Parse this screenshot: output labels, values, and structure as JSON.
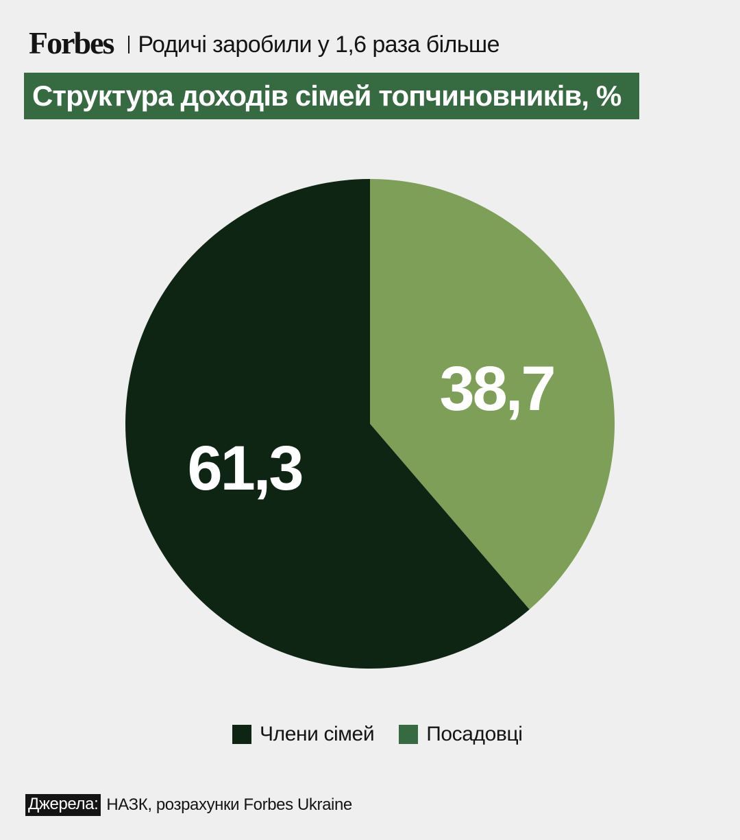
{
  "header": {
    "brand": "Forbes",
    "subtitle": "Родичі заробили у 1,6 раза більше"
  },
  "chart_data": {
    "type": "pie",
    "title": "Структура доходів сімей топчиновників, %",
    "unit": "%",
    "slices": [
      {
        "name": "Посадовці",
        "value": 38.7,
        "label": "38,7",
        "color": "#7d9f57"
      },
      {
        "name": "Члени сімей",
        "value": 61.3,
        "label": "61,3",
        "color": "#0e2514"
      }
    ],
    "legend": {
      "placement": "bottom-center",
      "entries": [
        {
          "name": "Члени сімей",
          "color": "#0e2514"
        },
        {
          "name": "Посадовці",
          "color": "#366a40"
        }
      ]
    }
  },
  "source": {
    "tag": "Джерела:",
    "text": "НАЗК, розрахунки Forbes Ukraine"
  },
  "colors": {
    "background": "#efefef",
    "title_band": "#366a40",
    "text": "#141414"
  }
}
